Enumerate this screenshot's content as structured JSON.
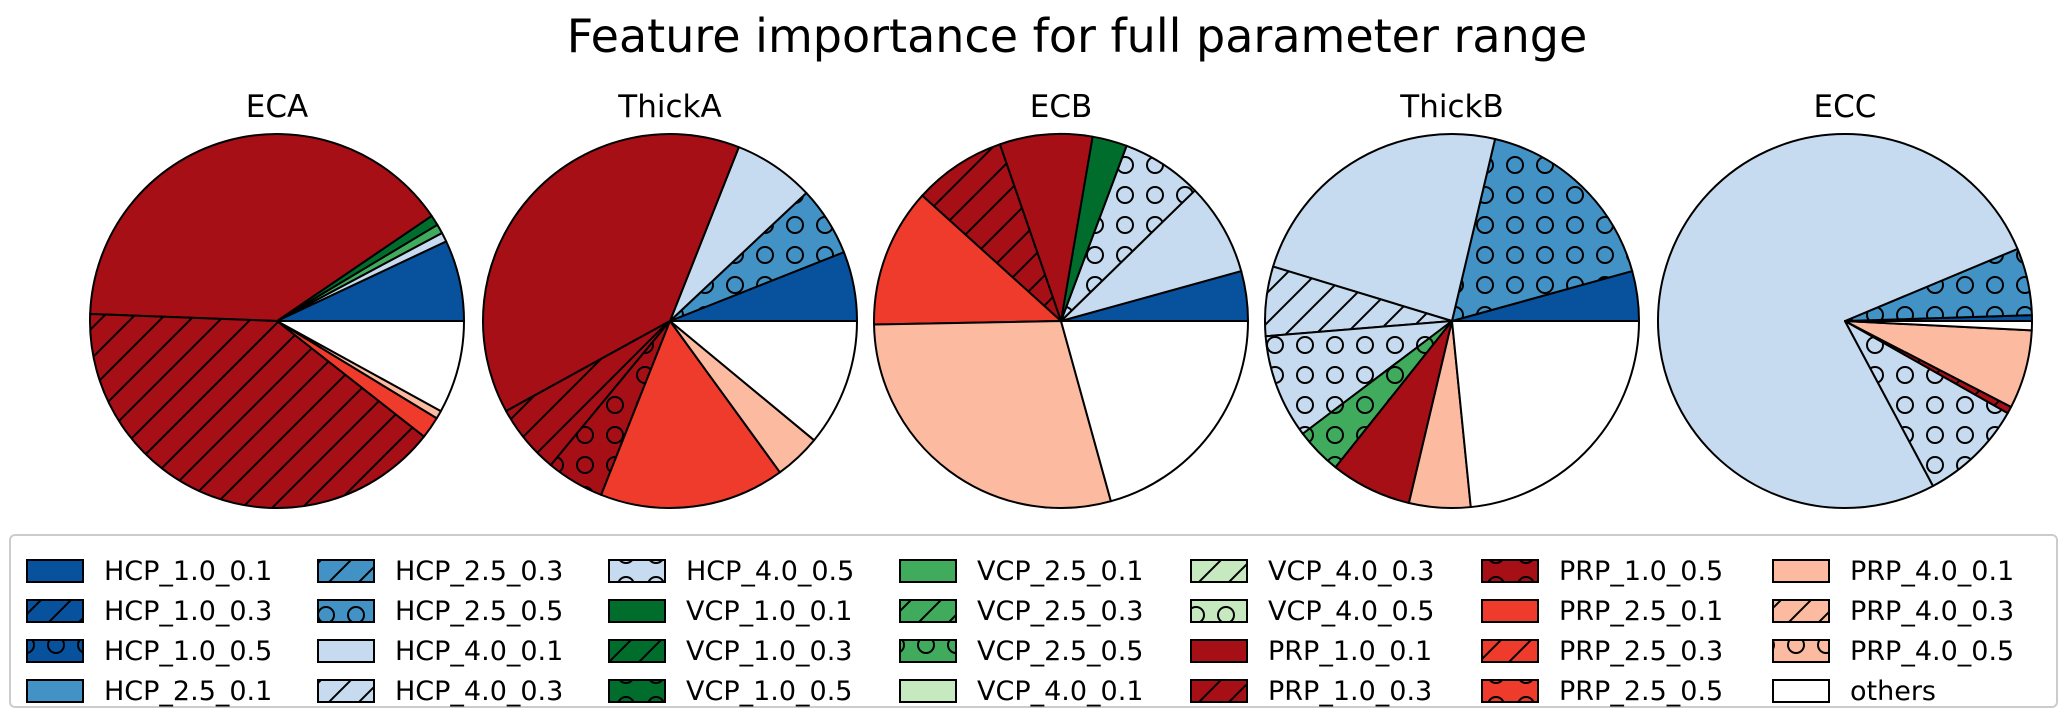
{
  "chart_data": {
    "type": "pie",
    "title": "Feature importance for full parameter range",
    "legend_position": "bottom",
    "categories": [
      "HCP_1.0_0.1",
      "HCP_1.0_0.3",
      "HCP_1.0_0.5",
      "HCP_2.5_0.1",
      "HCP_2.5_0.3",
      "HCP_2.5_0.5",
      "HCP_4.0_0.1",
      "HCP_4.0_0.3",
      "HCP_4.0_0.5",
      "VCP_1.0_0.1",
      "VCP_1.0_0.3",
      "VCP_1.0_0.5",
      "VCP_2.5_0.1",
      "VCP_2.5_0.3",
      "VCP_2.5_0.5",
      "VCP_4.0_0.1",
      "VCP_4.0_0.3",
      "VCP_4.0_0.5",
      "PRP_1.0_0.1",
      "PRP_1.0_0.3",
      "PRP_1.0_0.5",
      "PRP_2.5_0.1",
      "PRP_2.5_0.3",
      "PRP_2.5_0.5",
      "PRP_4.0_0.1",
      "PRP_4.0_0.3",
      "PRP_4.0_0.5",
      "others"
    ],
    "colors": [
      "#08519c",
      "#08519c",
      "#08519c",
      "#4292c6",
      "#4292c6",
      "#4292c6",
      "#c6dbef",
      "#c6dbef",
      "#c6dbef",
      "#006d2c",
      "#006d2c",
      "#006d2c",
      "#41ab5d",
      "#41ab5d",
      "#41ab5d",
      "#c7e9c0",
      "#c7e9c0",
      "#c7e9c0",
      "#a50f15",
      "#a50f15",
      "#a50f15",
      "#ef3b2c",
      "#ef3b2c",
      "#ef3b2c",
      "#fcbba1",
      "#fcbba1",
      "#fcbba1",
      "#ffffff"
    ],
    "hatches": [
      "none",
      "diag",
      "circle",
      "none",
      "diag",
      "circle",
      "none",
      "diag",
      "circle",
      "none",
      "diag",
      "circle",
      "none",
      "diag",
      "circle",
      "none",
      "diag",
      "circle",
      "none",
      "diag",
      "circle",
      "none",
      "diag",
      "circle",
      "none",
      "diag",
      "circle",
      "none"
    ],
    "pies": [
      {
        "name": "ECA",
        "slices": [
          {
            "label": "HCP_1.0_0.1",
            "value": 7.0
          },
          {
            "label": "HCP_4.0_0.1",
            "value": 0.8
          },
          {
            "label": "VCP_2.5_0.1",
            "value": 0.8
          },
          {
            "label": "VCP_1.0_0.1",
            "value": 0.9
          },
          {
            "label": "PRP_1.0_0.1",
            "value": 39.9
          },
          {
            "label": "PRP_1.0_0.3",
            "value": 40.0
          },
          {
            "label": "PRP_2.5_0.1",
            "value": 1.9
          },
          {
            "label": "PRP_4.0_0.1",
            "value": 0.7
          },
          {
            "label": "others",
            "value": 8.0
          }
        ]
      },
      {
        "name": "ThickA",
        "slices": [
          {
            "label": "HCP_1.0_0.1",
            "value": 6.0
          },
          {
            "label": "HCP_2.5_0.5",
            "value": 6.0
          },
          {
            "label": "HCP_4.0_0.1",
            "value": 7.0
          },
          {
            "label": "PRP_1.0_0.1",
            "value": 39.0
          },
          {
            "label": "PRP_1.0_0.3",
            "value": 6.0
          },
          {
            "label": "PRP_1.0_0.5",
            "value": 5.0
          },
          {
            "label": "PRP_2.5_0.1",
            "value": 16.0
          },
          {
            "label": "PRP_4.0_0.1",
            "value": 4.0
          },
          {
            "label": "others",
            "value": 11.0
          }
        ]
      },
      {
        "name": "ECB",
        "slices": [
          {
            "label": "HCP_1.0_0.1",
            "value": 4.3
          },
          {
            "label": "HCP_4.0_0.1",
            "value": 8.0
          },
          {
            "label": "HCP_4.0_0.5",
            "value": 7.0
          },
          {
            "label": "VCP_1.0_0.1",
            "value": 3.0
          },
          {
            "label": "PRP_1.0_0.1",
            "value": 8.0
          },
          {
            "label": "PRP_1.0_0.3",
            "value": 8.0
          },
          {
            "label": "PRP_2.5_0.1",
            "value": 12.0
          },
          {
            "label": "PRP_4.0_0.1",
            "value": 29.0
          },
          {
            "label": "others",
            "value": 20.7
          }
        ]
      },
      {
        "name": "ThickB",
        "slices": [
          {
            "label": "HCP_1.0_0.1",
            "value": 4.3
          },
          {
            "label": "HCP_2.5_0.5",
            "value": 17.0
          },
          {
            "label": "HCP_4.0_0.1",
            "value": 24.0
          },
          {
            "label": "HCP_4.0_0.3",
            "value": 6.0
          },
          {
            "label": "HCP_4.0_0.5",
            "value": 9.0
          },
          {
            "label": "VCP_2.5_0.5",
            "value": 4.0
          },
          {
            "label": "PRP_1.0_0.1",
            "value": 7.0
          },
          {
            "label": "PRP_4.0_0.1",
            "value": 5.3
          },
          {
            "label": "others",
            "value": 23.4
          }
        ]
      },
      {
        "name": "ECC",
        "slices": [
          {
            "label": "HCP_1.0_0.1",
            "value": 0.5
          },
          {
            "label": "HCP_2.5_0.5",
            "value": 5.8
          },
          {
            "label": "HCP_4.0_0.1",
            "value": 76.5
          },
          {
            "label": "HCP_4.0_0.5",
            "value": 9.0
          },
          {
            "label": "PRP_1.0_0.3",
            "value": 0.6
          },
          {
            "label": "PRP_4.0_0.1",
            "value": 6.8
          },
          {
            "label": "others",
            "value": 0.8
          }
        ]
      }
    ]
  }
}
